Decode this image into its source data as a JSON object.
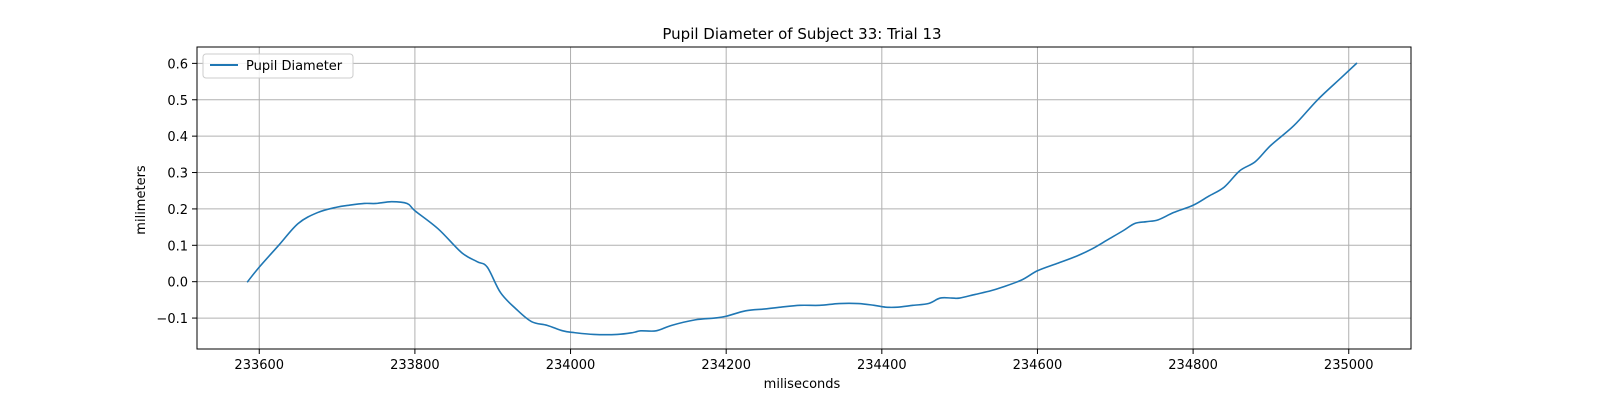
{
  "chart_data": {
    "type": "line",
    "title": "Pupil Diameter of Subject 33: Trial 13",
    "xlabel": "miliseconds",
    "ylabel": "milimeters",
    "xlim": [
      233520,
      235080
    ],
    "ylim": [
      -0.185,
      0.645
    ],
    "xticks": [
      233600,
      233800,
      234000,
      234200,
      234400,
      234600,
      234800,
      235000
    ],
    "yticks": [
      -0.1,
      0.0,
      0.1,
      0.2,
      0.3,
      0.4,
      0.5,
      0.6
    ],
    "xtick_labels": [
      "233600",
      "233800",
      "234000",
      "234200",
      "234400",
      "234600",
      "234800",
      "235000"
    ],
    "ytick_labels": [
      "−0.1",
      "0.0",
      "0.1",
      "0.2",
      "0.3",
      "0.4",
      "0.5",
      "0.6"
    ],
    "grid": true,
    "legend": {
      "position": "upper-left"
    },
    "colors": {
      "series": "#1f77b4",
      "grid": "#b0b0b0",
      "axes": "#000000"
    },
    "series": [
      {
        "name": "Pupil Diameter",
        "x": [
          233585,
          233600,
          233625,
          233650,
          233675,
          233700,
          233715,
          233735,
          233750,
          233770,
          233790,
          233800,
          233830,
          233860,
          233880,
          233893,
          233910,
          233930,
          233950,
          233970,
          233990,
          234005,
          234030,
          234060,
          234080,
          234090,
          234110,
          234130,
          234160,
          234185,
          234200,
          234225,
          234250,
          234270,
          234295,
          234320,
          234345,
          234370,
          234390,
          234405,
          234420,
          234440,
          234460,
          234475,
          234490,
          234500,
          234520,
          234540,
          234555,
          234580,
          234600,
          234625,
          234650,
          234670,
          234690,
          234710,
          234725,
          234740,
          234755,
          234775,
          234800,
          234820,
          234840,
          234860,
          234880,
          234900,
          234930,
          234960,
          234990,
          235010
        ],
        "y": [
          0.0,
          0.04,
          0.1,
          0.16,
          0.19,
          0.205,
          0.21,
          0.215,
          0.215,
          0.22,
          0.215,
          0.195,
          0.145,
          0.08,
          0.055,
          0.04,
          -0.03,
          -0.075,
          -0.11,
          -0.12,
          -0.135,
          -0.14,
          -0.145,
          -0.145,
          -0.14,
          -0.135,
          -0.135,
          -0.12,
          -0.105,
          -0.1,
          -0.095,
          -0.08,
          -0.075,
          -0.07,
          -0.065,
          -0.065,
          -0.06,
          -0.06,
          -0.065,
          -0.07,
          -0.07,
          -0.065,
          -0.06,
          -0.045,
          -0.045,
          -0.045,
          -0.035,
          -0.025,
          -0.015,
          0.005,
          0.03,
          0.05,
          0.07,
          0.09,
          0.115,
          0.14,
          0.16,
          0.165,
          0.17,
          0.19,
          0.21,
          0.235,
          0.26,
          0.305,
          0.33,
          0.375,
          0.43,
          0.5,
          0.56,
          0.6
        ]
      }
    ]
  }
}
